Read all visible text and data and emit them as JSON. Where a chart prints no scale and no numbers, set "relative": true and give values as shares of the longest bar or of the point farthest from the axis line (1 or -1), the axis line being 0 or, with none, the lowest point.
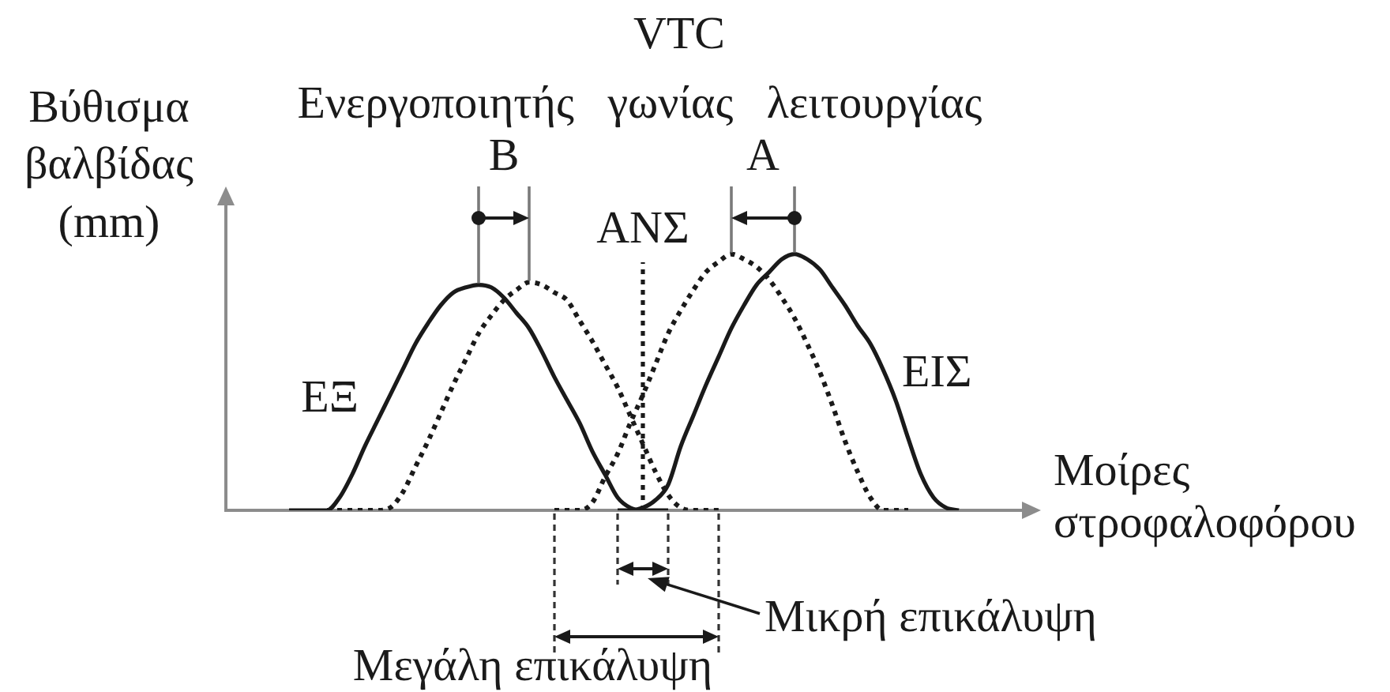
{
  "chart_data": {
    "type": "line",
    "title": "VTC",
    "subtitle": "Ενεργοποιητής γωνίας λειτουργίας",
    "xlabel": "Μοίρες στροφαλοφόρου",
    "ylabel": "Βύθισμα βαλβίδας (mm)",
    "annotations": [
      "B",
      "A",
      "ΑΝΣ",
      "Μικρή επικάλυψη",
      "Μεγάλη επικάλυψη"
    ],
    "relative": true,
    "legend": false,
    "grid": false,
    "tick_labels": false,
    "categories": [
      null,
      null,
      null,
      null,
      null,
      null,
      null,
      null,
      null,
      null,
      null,
      null,
      null,
      null,
      null,
      null,
      null,
      null,
      null,
      null,
      null,
      null,
      null,
      null,
      null,
      null,
      null,
      null,
      null,
      null,
      null,
      null,
      null,
      null,
      null,
      null,
      null,
      null,
      null,
      null,
      null,
      null,
      null,
      null,
      null,
      null,
      null,
      null,
      null,
      null,
      null,
      null,
      null,
      null,
      null,
      null,
      null,
      null,
      null,
      null,
      null,
      null,
      null,
      null
    ],
    "series": [
      {
        "name": "ΕΞ",
        "color": "#1a1a1a",
        "line_style": "solid",
        "values": [
          null,
          null,
          null,
          null,
          null,
          0,
          0,
          0,
          0,
          0.05,
          0.14,
          0.25,
          0.35,
          0.45,
          0.55,
          0.65,
          0.73,
          0.8,
          0.85,
          0.87,
          0.88,
          0.87,
          0.83,
          0.77,
          0.71,
          0.62,
          0.52,
          0.43,
          0.34,
          0.23,
          0.14,
          0.05,
          0.01,
          0,
          0,
          0,
          null,
          null,
          null,
          null,
          null,
          null,
          null,
          null,
          null,
          null,
          null,
          null,
          null,
          null,
          null,
          null,
          null,
          null,
          null,
          null,
          null,
          null,
          null,
          null,
          null,
          null,
          null,
          null
        ]
      },
      {
        "color": "#1a1a1a",
        "line_style": "dotted",
        "values": [
          null,
          null,
          null,
          null,
          null,
          null,
          null,
          null,
          0,
          0,
          0,
          0,
          0,
          0.01,
          0.07,
          0.17,
          0.27,
          0.38,
          0.49,
          0.59,
          0.69,
          0.76,
          0.82,
          0.86,
          0.89,
          0.88,
          0.85,
          0.82,
          0.74,
          0.66,
          0.57,
          0.48,
          0.37,
          0.26,
          0.15,
          0.06,
          0.01,
          0,
          0,
          0,
          null,
          null,
          null,
          null,
          null,
          null,
          null,
          null,
          null,
          null,
          null,
          null,
          null,
          null,
          null,
          null,
          null,
          null,
          null,
          null,
          null,
          null,
          null,
          null
        ]
      },
      {
        "name": "ΕΙΣ",
        "color": "#1a1a1a",
        "line_style": "solid",
        "values": [
          null,
          null,
          null,
          null,
          null,
          null,
          null,
          null,
          null,
          null,
          null,
          null,
          null,
          null,
          null,
          null,
          null,
          null,
          null,
          null,
          null,
          null,
          null,
          null,
          null,
          null,
          null,
          null,
          null,
          null,
          null,
          0,
          0,
          0.01,
          0.04,
          0.1,
          0.25,
          0.37,
          0.49,
          0.6,
          0.71,
          0.8,
          0.88,
          0.93,
          0.98,
          1,
          0.98,
          0.94,
          0.87,
          0.8,
          0.72,
          0.65,
          0.55,
          0.43,
          0.28,
          0.14,
          0.05,
          0.01,
          0,
          null,
          null,
          null,
          null,
          null
        ]
      },
      {
        "color": "#1a1a1a",
        "line_style": "dotted",
        "values": [
          null,
          null,
          null,
          null,
          null,
          null,
          null,
          null,
          null,
          null,
          null,
          null,
          null,
          null,
          null,
          null,
          null,
          null,
          null,
          null,
          null,
          null,
          null,
          null,
          null,
          null,
          0,
          0,
          0,
          0.03,
          0.13,
          0.22,
          0.34,
          0.45,
          0.57,
          0.69,
          0.78,
          0.86,
          0.93,
          0.97,
          1,
          0.98,
          0.95,
          0.9,
          0.83,
          0.75,
          0.65,
          0.54,
          0.41,
          0.27,
          0.15,
          0.05,
          0,
          0,
          0,
          null,
          null,
          null,
          null,
          null,
          null,
          null,
          null,
          null
        ]
      }
    ]
  }
}
